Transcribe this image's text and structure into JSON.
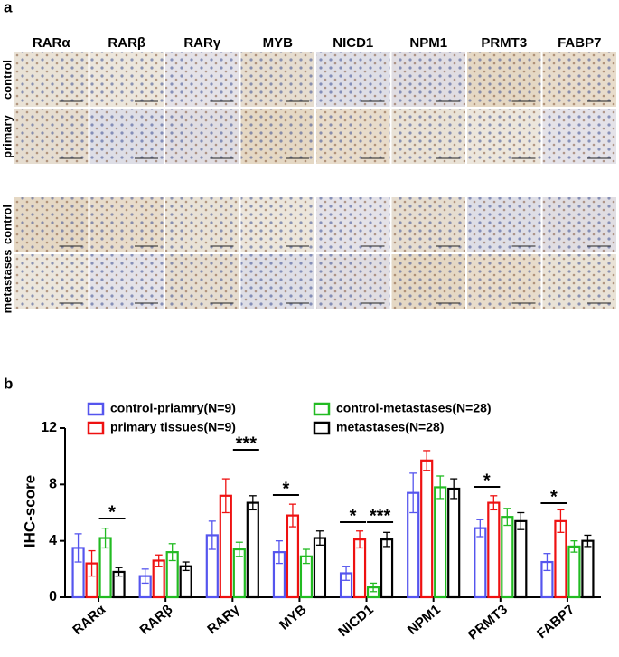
{
  "panel_a": {
    "label": "a",
    "columns": [
      "RARα",
      "RARβ",
      "RARγ",
      "MYB",
      "NICD1",
      "NPM1",
      "PRMT3",
      "FABP7"
    ],
    "rows": [
      "control",
      "primary",
      "control",
      "metastases"
    ]
  },
  "chart_data": {
    "type": "bar",
    "panel_label": "b",
    "ylabel": "IHC-score",
    "categories": [
      "RARα",
      "RARβ",
      "RARγ",
      "MYB",
      "NICD1",
      "NPM1",
      "PRMT3",
      "FABP7"
    ],
    "series": [
      {
        "name": "control-priamry(N=9)",
        "color": "#5555ee",
        "values": [
          3.5,
          1.5,
          4.4,
          3.2,
          1.7,
          7.4,
          4.9,
          2.5
        ],
        "errors": [
          1.0,
          0.5,
          1.0,
          0.8,
          0.5,
          1.4,
          0.6,
          0.6
        ]
      },
      {
        "name": "primary tissues(N=9)",
        "color": "#ee1111",
        "values": [
          2.4,
          2.6,
          7.2,
          5.8,
          4.1,
          9.7,
          6.7,
          5.4
        ],
        "errors": [
          0.9,
          0.4,
          1.2,
          0.8,
          0.6,
          0.7,
          0.5,
          0.8
        ]
      },
      {
        "name": "control-metastases(N=28)",
        "color": "#22bb22",
        "values": [
          4.2,
          3.2,
          3.4,
          2.9,
          0.7,
          7.8,
          5.7,
          3.6
        ],
        "errors": [
          0.7,
          0.6,
          0.5,
          0.5,
          0.3,
          0.8,
          0.6,
          0.4
        ]
      },
      {
        "name": "metastases(N=28)",
        "color": "#000000",
        "values": [
          1.8,
          2.2,
          6.7,
          4.2,
          4.1,
          7.7,
          5.4,
          4.0
        ],
        "errors": [
          0.3,
          0.3,
          0.5,
          0.5,
          0.5,
          0.7,
          0.6,
          0.4
        ]
      }
    ],
    "annotations": [
      "*",
      "***",
      "*",
      "*",
      "***",
      "*",
      "*"
    ],
    "ylim": [
      0,
      12
    ],
    "yticks": [
      0,
      4,
      8,
      12
    ]
  }
}
